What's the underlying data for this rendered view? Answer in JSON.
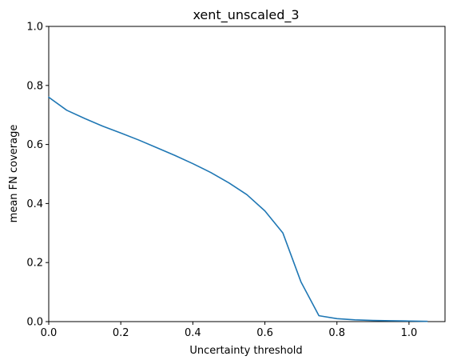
{
  "chart_data": {
    "type": "line",
    "title": "xent_unscaled_3",
    "xlabel": "Uncertainty threshold",
    "ylabel": "mean FN coverage",
    "xlim": [
      0,
      1.1
    ],
    "ylim": [
      0,
      1.0
    ],
    "grid": false,
    "x_ticks": [
      "0.0",
      "0.2",
      "0.4",
      "0.6",
      "0.8",
      "1.0"
    ],
    "y_ticks": [
      "0.0",
      "0.2",
      "0.4",
      "0.6",
      "0.8",
      "1.0"
    ],
    "series": [
      {
        "color": "#1f77b4",
        "x": [
          0.0,
          0.05,
          0.1,
          0.15,
          0.2,
          0.25,
          0.3,
          0.35,
          0.4,
          0.45,
          0.5,
          0.55,
          0.6,
          0.65,
          0.7,
          0.75,
          0.8,
          0.85,
          0.9,
          0.95,
          1.0,
          1.05
        ],
        "y": [
          0.76,
          0.716,
          0.688,
          0.662,
          0.639,
          0.615,
          0.589,
          0.563,
          0.535,
          0.505,
          0.47,
          0.43,
          0.375,
          0.3,
          0.135,
          0.02,
          0.01,
          0.006,
          0.004,
          0.003,
          0.002,
          0.001
        ]
      }
    ]
  }
}
